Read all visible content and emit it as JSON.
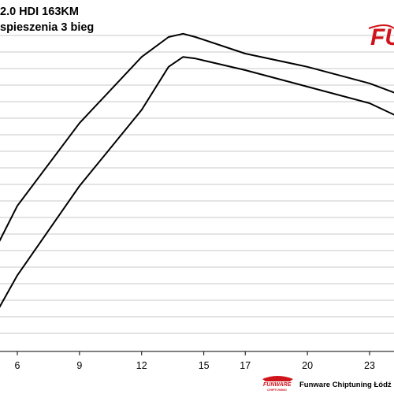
{
  "header": {
    "title_line1": "2.0 HDI 163KM",
    "title_line2": "spieszenia 3 bieg"
  },
  "logo": {
    "text_big": "FU",
    "text_small": "FUNWARE",
    "text_sub": "CHIPTUNING"
  },
  "footer": {
    "credit": "Funware Chiptuning Łódź"
  },
  "colors": {
    "line": "#000000",
    "grid": "#c8c8c8",
    "logo_red": "#d0141b"
  },
  "chart_data": {
    "type": "line",
    "title": "2.0 HDI 163KM spieszenia 3 bieg",
    "xlabel": "",
    "ylabel": "",
    "x_ticks": [
      "6",
      "9",
      "12",
      "15",
      "17",
      "20",
      "23"
    ],
    "grid": "horizontal",
    "series": [
      {
        "x": [
          4.3,
          6,
          9,
          12,
          13.3,
          14,
          14.6,
          17,
          20,
          23,
          24.7
        ],
        "y": [
          0.72,
          0.51,
          0.26,
          0.06,
          0.0,
          -0.01,
          0.0,
          0.05,
          0.09,
          0.14,
          0.18
        ]
      },
      {
        "x": [
          4.3,
          6,
          9,
          12,
          13.3,
          14,
          14.6,
          17,
          20,
          23,
          24.7
        ],
        "y": [
          0.91,
          0.72,
          0.45,
          0.22,
          0.09,
          0.06,
          0.065,
          0.1,
          0.15,
          0.2,
          0.25
        ]
      }
    ]
  }
}
